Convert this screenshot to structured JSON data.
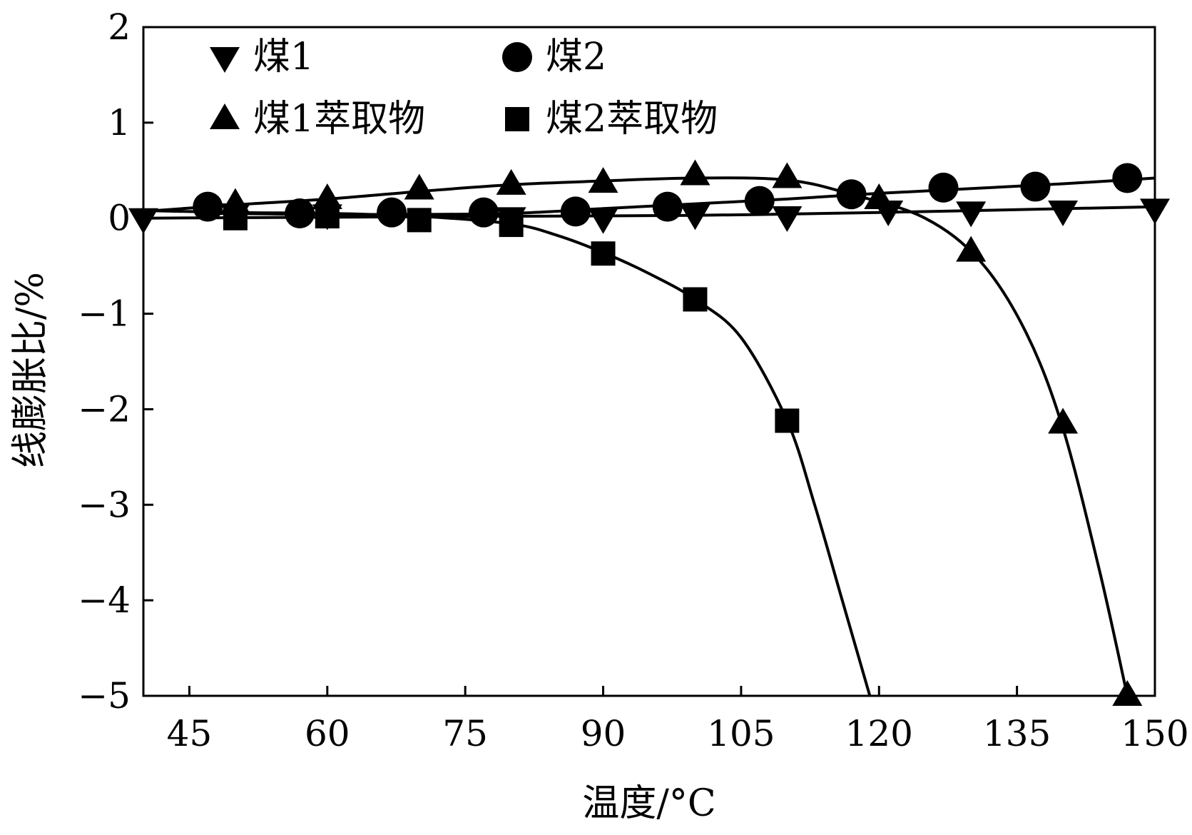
{
  "chart_data": {
    "type": "line",
    "xlabel": "温度/°C",
    "ylabel": "线膨胀比/%",
    "xlim": [
      40,
      150
    ],
    "ylim": [
      -5,
      2
    ],
    "xticks": [
      45,
      60,
      75,
      90,
      105,
      120,
      135,
      150
    ],
    "yticks": [
      2,
      1,
      0,
      -1,
      -2,
      -3,
      -4,
      -5
    ],
    "ytick_labels": [
      "2",
      "1",
      "0",
      "−1",
      "−2",
      "−3",
      "−4",
      "−5"
    ],
    "grid": false,
    "legend_position": "top-left",
    "series": [
      {
        "name": "煤1",
        "marker": "triangle-down",
        "points": [
          [
            40,
            0.0
          ],
          [
            50,
            0.05
          ],
          [
            60,
            0.04
          ],
          [
            80,
            0.01
          ],
          [
            90,
            0.0
          ],
          [
            100,
            0.04
          ],
          [
            110,
            0.02
          ],
          [
            121,
            0.08
          ],
          [
            130,
            0.07
          ],
          [
            140,
            0.08
          ],
          [
            150,
            0.1
          ]
        ],
        "curve": [
          [
            40,
            0.0
          ],
          [
            60,
            0.01
          ],
          [
            80,
            0.02
          ],
          [
            100,
            0.03
          ],
          [
            120,
            0.06
          ],
          [
            150,
            0.12
          ]
        ]
      },
      {
        "name": "煤2",
        "marker": "circle",
        "points": [
          [
            47,
            0.12
          ],
          [
            57,
            0.05
          ],
          [
            67,
            0.06
          ],
          [
            77,
            0.06
          ],
          [
            87,
            0.07
          ],
          [
            97,
            0.12
          ],
          [
            107,
            0.18
          ],
          [
            117,
            0.25
          ],
          [
            127,
            0.32
          ],
          [
            137,
            0.33
          ],
          [
            147,
            0.42
          ]
        ],
        "curve": [
          [
            47,
            0.05
          ],
          [
            60,
            0.04
          ],
          [
            70,
            0.04
          ],
          [
            80,
            0.05
          ],
          [
            90,
            0.1
          ],
          [
            100,
            0.15
          ],
          [
            110,
            0.2
          ],
          [
            120,
            0.26
          ],
          [
            130,
            0.31
          ],
          [
            140,
            0.36
          ],
          [
            150,
            0.42
          ]
        ]
      },
      {
        "name": "煤1萃取物",
        "marker": "triangle-up",
        "points": [
          [
            50,
            0.15
          ],
          [
            60,
            0.2
          ],
          [
            70,
            0.3
          ],
          [
            80,
            0.35
          ],
          [
            90,
            0.37
          ],
          [
            100,
            0.45
          ],
          [
            110,
            0.42
          ],
          [
            120,
            0.2
          ],
          [
            130,
            -0.35
          ],
          [
            140,
            -2.15
          ],
          [
            147,
            -5.0
          ]
        ],
        "curve": [
          [
            40,
            0.07
          ],
          [
            50,
            0.14
          ],
          [
            60,
            0.2
          ],
          [
            70,
            0.28
          ],
          [
            80,
            0.35
          ],
          [
            90,
            0.39
          ],
          [
            100,
            0.42
          ],
          [
            110,
            0.4
          ],
          [
            117,
            0.25
          ],
          [
            125,
            0.0
          ],
          [
            131,
            -0.45
          ],
          [
            136,
            -1.2
          ],
          [
            140,
            -2.2
          ],
          [
            144,
            -3.7
          ],
          [
            147,
            -5.0
          ]
        ]
      },
      {
        "name": "煤2萃取物",
        "marker": "square",
        "points": [
          [
            50,
            0.0
          ],
          [
            60,
            0.02
          ],
          [
            70,
            -0.02
          ],
          [
            80,
            -0.07
          ],
          [
            90,
            -0.37
          ],
          [
            100,
            -0.85
          ],
          [
            110,
            -2.12
          ]
        ],
        "curve": [
          [
            40,
            0.08
          ],
          [
            50,
            0.06
          ],
          [
            60,
            0.05
          ],
          [
            70,
            0.02
          ],
          [
            80,
            -0.06
          ],
          [
            85,
            -0.18
          ],
          [
            90,
            -0.36
          ],
          [
            95,
            -0.58
          ],
          [
            100,
            -0.85
          ],
          [
            105,
            -1.25
          ],
          [
            110,
            -2.12
          ],
          [
            113,
            -3.0
          ],
          [
            116,
            -4.0
          ],
          [
            119,
            -5.0
          ]
        ]
      }
    ]
  }
}
